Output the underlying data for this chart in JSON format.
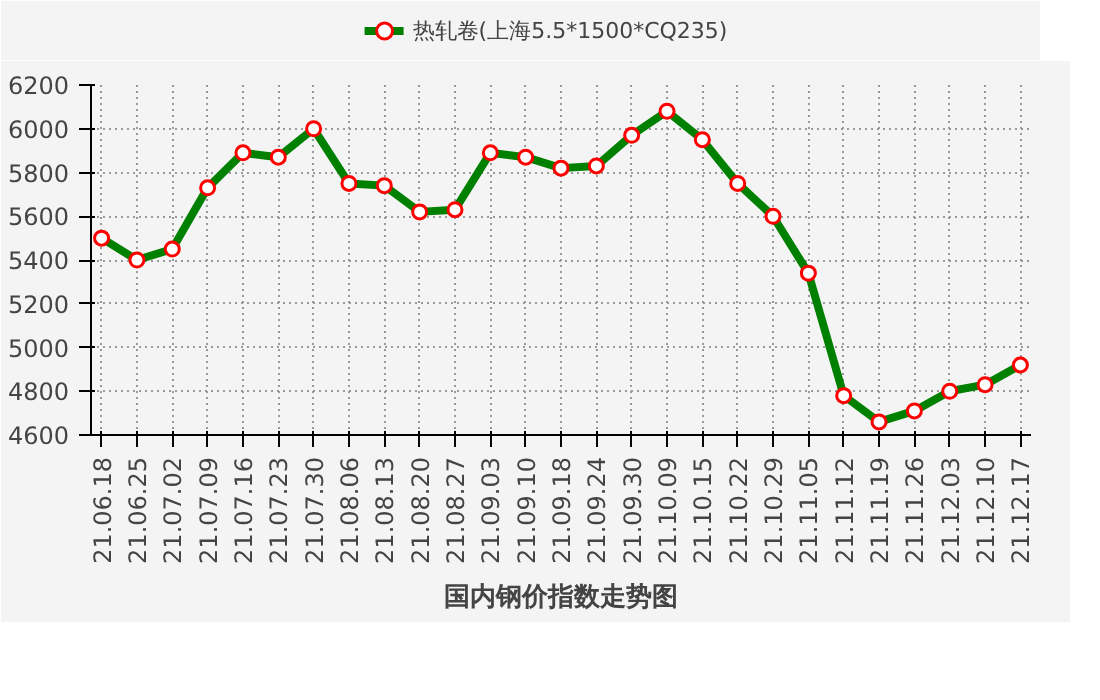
{
  "chart_data": {
    "type": "line",
    "title": "国内钢价指数走势图",
    "categories": [
      "21.06.18",
      "21.06.25",
      "21.07.02",
      "21.07.09",
      "21.07.16",
      "21.07.23",
      "21.07.30",
      "21.08.06",
      "21.08.13",
      "21.08.20",
      "21.08.27",
      "21.09.03",
      "21.09.10",
      "21.09.18",
      "21.09.24",
      "21.09.30",
      "21.10.09",
      "21.10.15",
      "21.10.22",
      "21.10.29",
      "21.11.05",
      "21.11.12",
      "21.11.19",
      "21.11.26",
      "21.12.03",
      "21.12.10",
      "21.12.17"
    ],
    "series": [
      {
        "name": "热轧卷(上海5.5*1500*CQ235)",
        "color": "#008000",
        "values": [
          5500,
          5400,
          5450,
          5730,
          5890,
          5870,
          6000,
          5750,
          5740,
          5620,
          5630,
          5890,
          5870,
          5820,
          5830,
          5970,
          6080,
          5950,
          5750,
          5600,
          5340,
          4780,
          4660,
          4710,
          4800,
          4830,
          4920
        ]
      }
    ],
    "ylim": [
      4600,
      6200
    ],
    "yticks": [
      4600,
      4800,
      5000,
      5200,
      5400,
      5600,
      5800,
      6000,
      6200
    ],
    "grid": true,
    "legend": "top",
    "marker": "circle",
    "line_style": "solid"
  }
}
